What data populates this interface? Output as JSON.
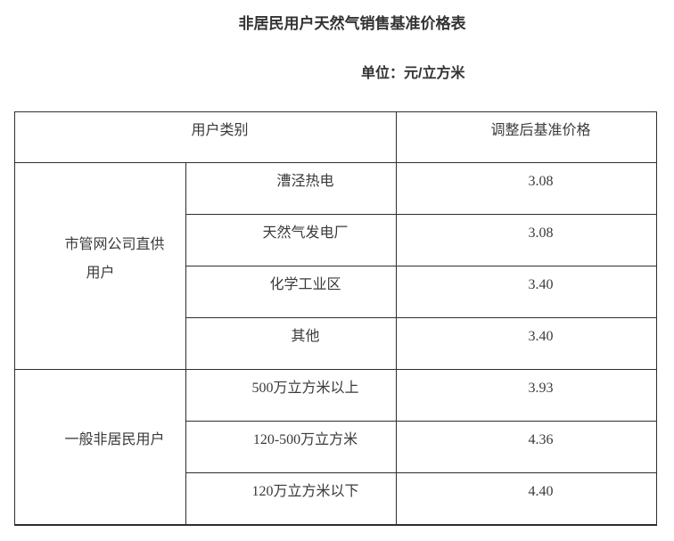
{
  "page": {
    "title": "非居民用户天然气销售基准价格表",
    "unit_label": "单位：元/立方米"
  },
  "colors": {
    "text": "#3a3a3a",
    "heading": "#333333",
    "border": "#2e2e2e",
    "background": "#ffffff"
  },
  "table": {
    "header": {
      "user_category": "用户类别",
      "adjusted_price": "调整后基准价格"
    },
    "sections": [
      {
        "category": "市管网公司直供\n用户",
        "rows": [
          {
            "label": "漕泾热电",
            "price": "3.08"
          },
          {
            "label": "天然气发电厂",
            "price": "3.08"
          },
          {
            "label": "化学工业区",
            "price": "3.40"
          },
          {
            "label": "其他",
            "price": "3.40"
          }
        ]
      },
      {
        "category": "一般非居民用户",
        "rows": [
          {
            "label": "500万立方米以上",
            "price": "3.93"
          },
          {
            "label": "120-500万立方米",
            "price": "4.36"
          },
          {
            "label": "120万立方米以下",
            "price": "4.40"
          }
        ]
      }
    ]
  }
}
